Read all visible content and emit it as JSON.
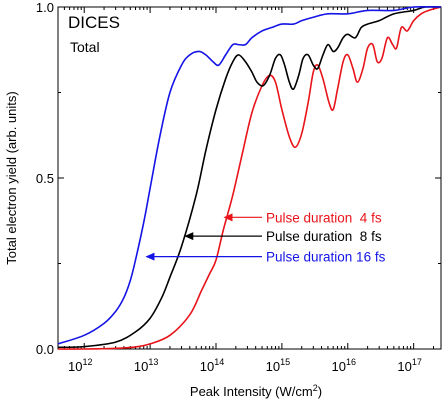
{
  "chart_data": {
    "type": "line",
    "panel_title": "DICES",
    "panel_subtitle": "Total",
    "xlabel": {
      "main": "Peak Intensity (W/cm",
      "sup": "2",
      "tail": ")"
    },
    "ylabel": "Total electron yield (arb. units)",
    "x_scale": "log",
    "xlim": [
      400000000000.0,
      2.6e+17
    ],
    "ylim": [
      0,
      1
    ],
    "x_ticks": [
      {
        "value": 1000000000000.0,
        "base": "10",
        "exp": "12"
      },
      {
        "value": 10000000000000.0,
        "base": "10",
        "exp": "13"
      },
      {
        "value": 100000000000000.0,
        "base": "10",
        "exp": "14"
      },
      {
        "value": 1000000000000000.0,
        "base": "10",
        "exp": "15"
      },
      {
        "value": 1e+16,
        "base": "10",
        "exp": "16"
      },
      {
        "value": 1e+17,
        "base": "10",
        "exp": "17"
      }
    ],
    "y_ticks": [
      {
        "value": 0,
        "label": "0.0"
      },
      {
        "value": 0.5,
        "label": "0.5"
      },
      {
        "value": 1,
        "label": "1.0"
      }
    ],
    "grid": false,
    "series": [
      {
        "name": "Pulse duration  4 fs",
        "color": "#e8141a",
        "annotation_at": {
          "x": 130000000000000.0,
          "y": 0.385
        },
        "points": [
          [
            400000000000.0,
            0.0
          ],
          [
            1000000000000.0,
            0.0
          ],
          [
            3000000000000.0,
            0.002
          ],
          [
            6000000000000.0,
            0.006
          ],
          [
            10000000000000.0,
            0.015
          ],
          [
            20000000000000.0,
            0.04
          ],
          [
            40000000000000.0,
            0.1
          ],
          [
            60000000000000.0,
            0.17
          ],
          [
            80000000000000.0,
            0.22
          ],
          [
            100000000000000.0,
            0.26
          ],
          [
            130000000000000.0,
            0.35
          ],
          [
            180000000000000.0,
            0.45
          ],
          [
            250000000000000.0,
            0.57
          ],
          [
            350000000000000.0,
            0.69
          ],
          [
            500000000000000.0,
            0.77
          ],
          [
            650000000000000.0,
            0.8
          ],
          [
            800000000000000.0,
            0.78
          ],
          [
            1000000000000000.0,
            0.7
          ],
          [
            1300000000000000.0,
            0.62
          ],
          [
            1600000000000000.0,
            0.59
          ],
          [
            2000000000000000.0,
            0.63
          ],
          [
            2500000000000000.0,
            0.72
          ],
          [
            3000000000000000.0,
            0.81
          ],
          [
            3500000000000000.0,
            0.83
          ],
          [
            4200000000000000.0,
            0.79
          ],
          [
            5200000000000000.0,
            0.72
          ],
          [
            6000000000000000.0,
            0.7
          ],
          [
            7000000000000000.0,
            0.76
          ],
          [
            8500000000000000.0,
            0.84
          ],
          [
            1e+16,
            0.86
          ],
          [
            1.2e+16,
            0.82
          ],
          [
            1.4e+16,
            0.78
          ],
          [
            1.7e+16,
            0.82
          ],
          [
            2e+16,
            0.88
          ],
          [
            2.4e+16,
            0.89
          ],
          [
            2.8e+16,
            0.84
          ],
          [
            3.3e+16,
            0.85
          ],
          [
            4e+16,
            0.91
          ],
          [
            4.8e+16,
            0.89
          ],
          [
            5.5e+16,
            0.88
          ],
          [
            6.5e+16,
            0.94
          ],
          [
            8e+16,
            0.93
          ],
          [
            1e+17,
            0.96
          ],
          [
            1.3e+17,
            0.98
          ],
          [
            1.7e+17,
            0.99
          ],
          [
            2.6e+17,
            1.0
          ]
        ]
      },
      {
        "name": "Pulse duration  8 fs",
        "color": "#000000",
        "annotation_at": {
          "x": 33000000000000.0,
          "y": 0.33
        },
        "points": [
          [
            400000000000.0,
            0.005
          ],
          [
            1000000000000.0,
            0.007
          ],
          [
            3000000000000.0,
            0.02
          ],
          [
            6000000000000.0,
            0.05
          ],
          [
            10000000000000.0,
            0.09
          ],
          [
            15000000000000.0,
            0.15
          ],
          [
            20000000000000.0,
            0.21
          ],
          [
            30000000000000.0,
            0.3
          ],
          [
            50000000000000.0,
            0.45
          ],
          [
            70000000000000.0,
            0.58
          ],
          [
            100000000000000.0,
            0.7
          ],
          [
            140000000000000.0,
            0.79
          ],
          [
            180000000000000.0,
            0.84
          ],
          [
            220000000000000.0,
            0.86
          ],
          [
            280000000000000.0,
            0.84
          ],
          [
            350000000000000.0,
            0.81
          ],
          [
            420000000000000.0,
            0.78
          ],
          [
            520000000000000.0,
            0.77
          ],
          [
            650000000000000.0,
            0.8
          ],
          [
            800000000000000.0,
            0.85
          ],
          [
            950000000000000.0,
            0.86
          ],
          [
            1100000000000000.0,
            0.83
          ],
          [
            1300000000000000.0,
            0.78
          ],
          [
            1500000000000000.0,
            0.76
          ],
          [
            1800000000000000.0,
            0.8
          ],
          [
            2100000000000000.0,
            0.85
          ],
          [
            2500000000000000.0,
            0.86
          ],
          [
            3000000000000000.0,
            0.83
          ],
          [
            3500000000000000.0,
            0.82
          ],
          [
            4200000000000000.0,
            0.86
          ],
          [
            5000000000000000.0,
            0.89
          ],
          [
            6000000000000000.0,
            0.87
          ],
          [
            7000000000000000.0,
            0.88
          ],
          [
            8500000000000000.0,
            0.91
          ],
          [
            1e+16,
            0.92
          ],
          [
            1.3e+16,
            0.91
          ],
          [
            1.6e+16,
            0.94
          ],
          [
            2e+16,
            0.95
          ],
          [
            3e+16,
            0.96
          ],
          [
            5e+16,
            0.98
          ],
          [
            1e+17,
            0.99
          ],
          [
            1.5e+17,
            1.0
          ],
          [
            2.6e+17,
            1.0
          ]
        ]
      },
      {
        "name": "Pulse duration 16 fs",
        "color": "#1414e6",
        "annotation_at": {
          "x": 8500000000000.0,
          "y": 0.27
        },
        "points": [
          [
            400000000000.0,
            0.015
          ],
          [
            1000000000000.0,
            0.04
          ],
          [
            2000000000000.0,
            0.075
          ],
          [
            3000000000000.0,
            0.11
          ],
          [
            4000000000000.0,
            0.15
          ],
          [
            5000000000000.0,
            0.2
          ],
          [
            6000000000000.0,
            0.26
          ],
          [
            8000000000000.0,
            0.37
          ],
          [
            10000000000000.0,
            0.47
          ],
          [
            14000000000000.0,
            0.62
          ],
          [
            20000000000000.0,
            0.75
          ],
          [
            30000000000000.0,
            0.83
          ],
          [
            40000000000000.0,
            0.86
          ],
          [
            55000000000000.0,
            0.87
          ],
          [
            70000000000000.0,
            0.86
          ],
          [
            90000000000000.0,
            0.84
          ],
          [
            110000000000000.0,
            0.83
          ],
          [
            140000000000000.0,
            0.86
          ],
          [
            180000000000000.0,
            0.89
          ],
          [
            220000000000000.0,
            0.89
          ],
          [
            280000000000000.0,
            0.89
          ],
          [
            350000000000000.0,
            0.91
          ],
          [
            500000000000000.0,
            0.93
          ],
          [
            700000000000000.0,
            0.94
          ],
          [
            1000000000000000.0,
            0.95
          ],
          [
            1500000000000000.0,
            0.95
          ],
          [
            2000000000000000.0,
            0.96
          ],
          [
            3000000000000000.0,
            0.97
          ],
          [
            5000000000000000.0,
            0.98
          ],
          [
            1e+16,
            0.98
          ],
          [
            2e+16,
            0.99
          ],
          [
            5e+16,
            0.99
          ],
          [
            1e+17,
            1.0
          ],
          [
            2.6e+17,
            1.0
          ]
        ]
      }
    ]
  }
}
